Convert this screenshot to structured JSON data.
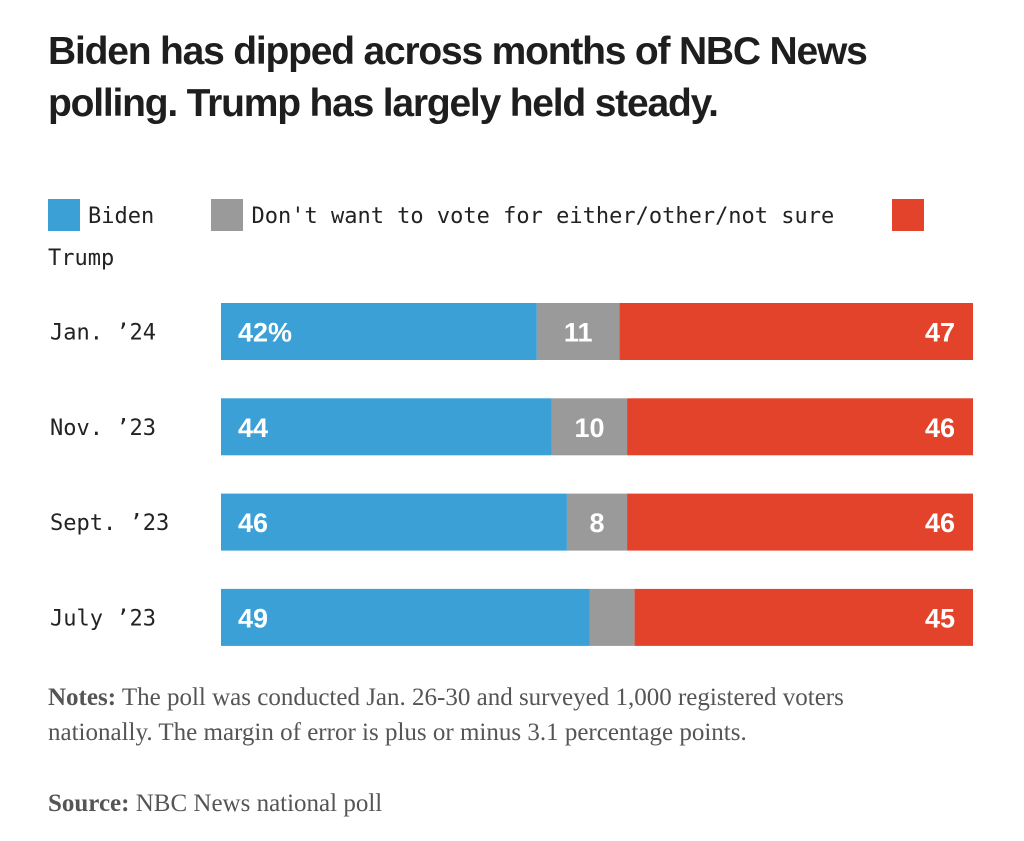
{
  "colors": {
    "biden": "#3aa0d6",
    "other": "#9a9a9a",
    "trump": "#e3432b"
  },
  "chart_data": {
    "type": "bar",
    "orientation": "horizontal",
    "stacked": true,
    "title": "Biden has dipped across months of NBC News polling. Trump has largely held steady.",
    "categories": [
      "Jan. ’24",
      "Nov. ’23",
      "Sept. ’23",
      "July ’23"
    ],
    "series": [
      {
        "name": "Biden",
        "values": [
          42,
          44,
          46,
          49
        ],
        "labels": [
          "42%",
          "44",
          "46",
          "49"
        ]
      },
      {
        "name": "Don't want to vote for either/other/not sure",
        "values": [
          11,
          10,
          8,
          6
        ],
        "labels": [
          "11",
          "10",
          "8",
          ""
        ]
      },
      {
        "name": "Trump",
        "values": [
          47,
          46,
          46,
          45
        ],
        "labels": [
          "47",
          "46",
          "46",
          "45"
        ]
      }
    ],
    "xlim": [
      0,
      100
    ],
    "legend_position": "top-left"
  },
  "notes": {
    "label": "Notes:",
    "text": " The poll was conducted Jan. 26-30 and surveyed 1,000 registered voters nationally. The margin of error is plus or minus 3.1 percentage points."
  },
  "source": {
    "label": "Source:",
    "text": " NBC News national poll"
  }
}
